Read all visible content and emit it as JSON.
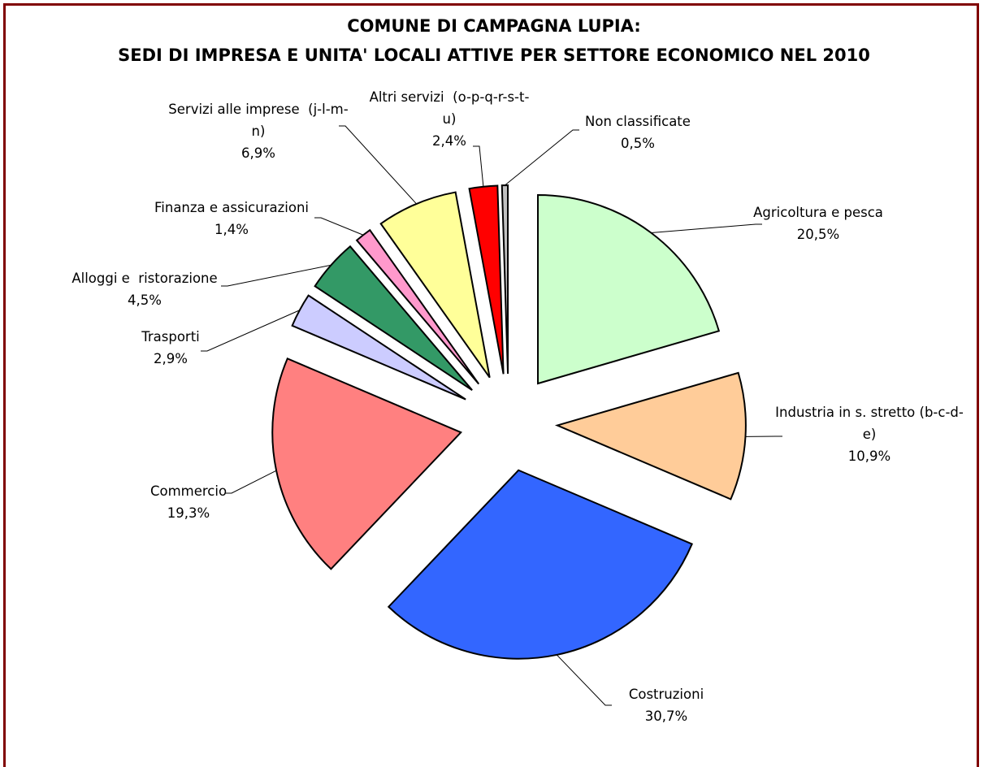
{
  "chart_data": {
    "type": "pie",
    "title": "COMUNE DI CAMPAGNA LUPIA:",
    "subtitle": "SEDI DI IMPRESA E UNITA' LOCALI ATTIVE PER SETTORE ECONOMICO NEL 2010",
    "categories": [
      "Agricoltura e pesca",
      "Industria in s. stretto (b-c-d-e)",
      "Costruzioni",
      "Commercio",
      "Trasporti",
      "Alloggi e  ristorazione",
      "Finanza e assicurazioni",
      "Servizi alle imprese  (j-l-m-n)",
      "Altri servizi  (o-p-q-r-s-t-u)",
      "Non classificate"
    ],
    "values": [
      20.5,
      10.9,
      30.7,
      19.3,
      2.9,
      4.5,
      1.4,
      6.9,
      2.4,
      0.5
    ],
    "value_labels": [
      "20,5%",
      "10,9%",
      "30,7%",
      "19,3%",
      "2,9%",
      "4,5%",
      "1,4%",
      "6,9%",
      "2,4%",
      "0,5%"
    ],
    "colors": [
      "#ccffcc",
      "#ffcc99",
      "#3366ff",
      "#ff8080",
      "#ccccff",
      "#339966",
      "#ff99cc",
      "#ffff99",
      "#ff0000",
      "#c0c0c0"
    ]
  }
}
